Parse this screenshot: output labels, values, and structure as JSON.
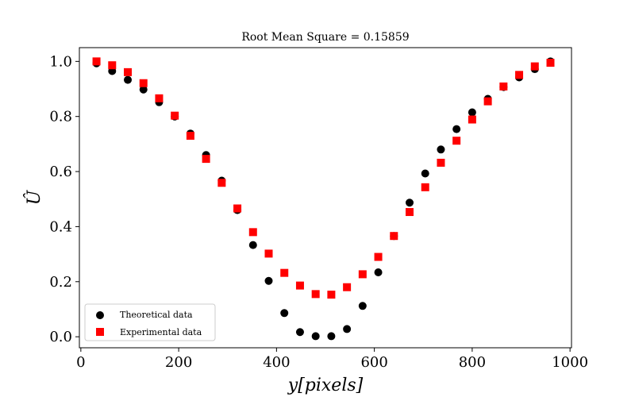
{
  "chart_data": {
    "type": "scatter",
    "title": "Root Mean Square = 0.15859",
    "xlabel": "y[pixels]",
    "ylabel": "Û",
    "xlim": [
      -3,
      1003
    ],
    "ylim": [
      -0.04,
      1.05
    ],
    "x_ticks": [
      0,
      200,
      400,
      600,
      800,
      1000
    ],
    "x_tick_labels": [
      "0",
      "200",
      "400",
      "600",
      "800",
      "1000"
    ],
    "y_ticks": [
      0.0,
      0.2,
      0.4,
      0.6,
      0.8,
      1.0
    ],
    "y_tick_labels": [
      "0.0",
      "0.2",
      "0.4",
      "0.6",
      "0.8",
      "1.0"
    ],
    "legend_position": "lower-left",
    "grid": false,
    "x": [
      32,
      64,
      96,
      128,
      160,
      192,
      224,
      256,
      288,
      320,
      352,
      384,
      416,
      448,
      480,
      512,
      544,
      576,
      608,
      640,
      672,
      704,
      736,
      768,
      800,
      832,
      864,
      896,
      928,
      960
    ],
    "series": [
      {
        "name": "Theoretical data",
        "marker": "circle",
        "color": "#000000",
        "values": [
          0.993,
          0.965,
          0.933,
          0.898,
          0.852,
          0.8,
          0.738,
          0.66,
          0.567,
          0.46,
          0.333,
          0.203,
          0.086,
          0.017,
          0.002,
          0.002,
          0.028,
          0.112,
          0.234,
          0.366,
          0.487,
          0.593,
          0.68,
          0.754,
          0.815,
          0.864,
          0.907,
          0.942,
          0.972,
          1.0
        ]
      },
      {
        "name": "Experimental data",
        "marker": "square",
        "color": "#ff0000",
        "values": [
          1.0,
          0.986,
          0.961,
          0.921,
          0.866,
          0.803,
          0.73,
          0.646,
          0.559,
          0.466,
          0.38,
          0.302,
          0.232,
          0.186,
          0.155,
          0.153,
          0.18,
          0.227,
          0.29,
          0.366,
          0.453,
          0.543,
          0.632,
          0.712,
          0.789,
          0.855,
          0.909,
          0.951,
          0.982,
          0.995
        ]
      }
    ]
  }
}
